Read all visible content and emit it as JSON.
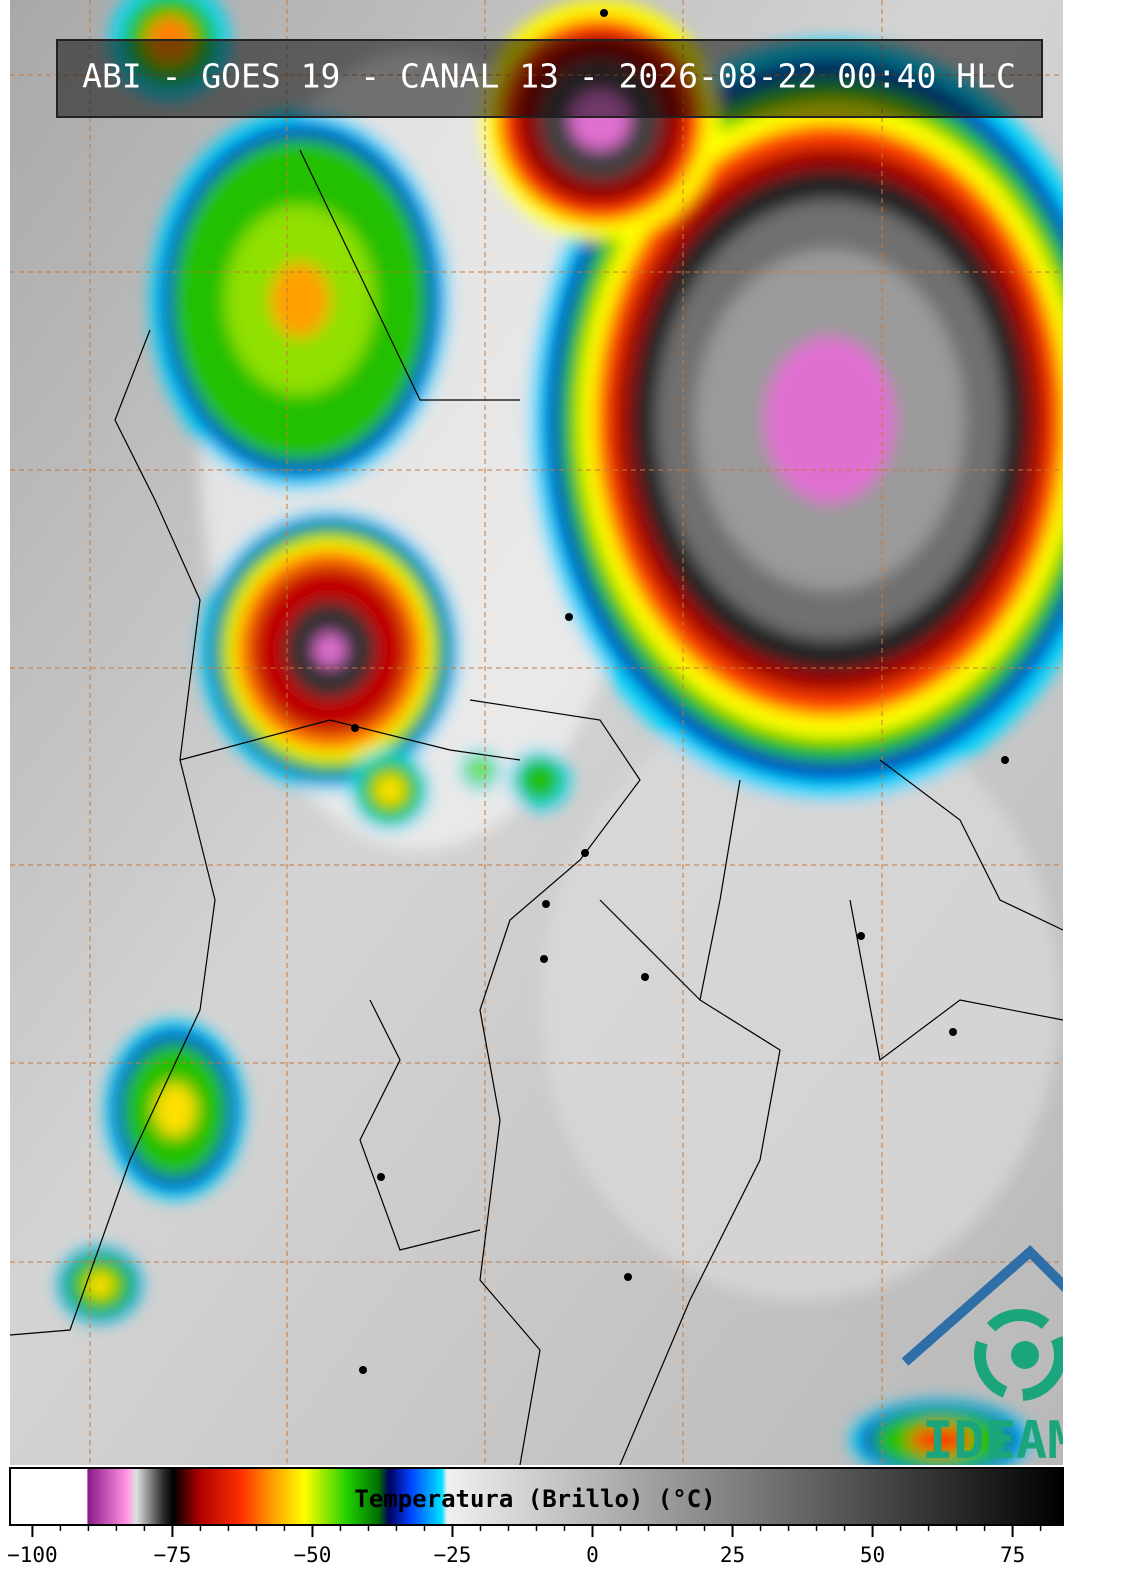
{
  "title": "ABI - GOES 19 - CANAL 13 - 2026-08-22 00:40 HLC",
  "logo": "IDEAM",
  "colorbar": {
    "label": "Temperatura (Brillo) (°C)",
    "lim": [
      -104,
      84
    ],
    "ticks": [
      {
        "value": -100,
        "label": "−100"
      },
      {
        "value": -75,
        "label": "−75"
      },
      {
        "value": -50,
        "label": "−50"
      },
      {
        "value": -25,
        "label": "−25"
      },
      0,
      25,
      50,
      75
    ]
  }
}
